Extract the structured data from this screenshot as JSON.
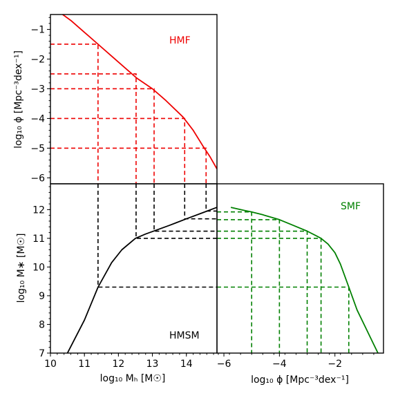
{
  "chart_data": [
    {
      "type": "line",
      "panel": "hmf",
      "label": "HMF",
      "color": "#ee0000",
      "xlim": [
        10,
        14.9
      ],
      "ylim": [
        -6.2,
        -0.5
      ],
      "yticks": [
        "−1",
        "−2",
        "−3",
        "−4",
        "−5",
        "−6"
      ],
      "ytick_values": [
        -1,
        -2,
        -3,
        -4,
        -5,
        -6
      ],
      "ylabel": "log₁₀ ϕ [Mpc⁻³dex⁻¹]",
      "series": [
        {
          "x": [
            10.3,
            10.6,
            11.0,
            11.4,
            11.8,
            12.2,
            12.55,
            13.0,
            13.4,
            13.9,
            14.2,
            14.5,
            14.7,
            14.9
          ],
          "y": [
            -0.45,
            -0.7,
            -1.1,
            -1.5,
            -1.9,
            -2.3,
            -2.65,
            -3.0,
            -3.4,
            -3.95,
            -4.4,
            -4.95,
            -5.3,
            -5.7
          ]
        }
      ],
      "guides": [
        {
          "x": 11.4,
          "y": -1.5
        },
        {
          "x": 12.52,
          "y": -2.5
        },
        {
          "x": 13.05,
          "y": -3.0
        },
        {
          "x": 13.95,
          "y": -4.0
        },
        {
          "x": 14.58,
          "y": -5.0
        }
      ]
    },
    {
      "type": "line",
      "panel": "hmsm",
      "label": "HMSM",
      "color": "#000000",
      "xlim": [
        10,
        14.9
      ],
      "ylim": [
        7,
        12.9
      ],
      "xticks": [
        "10",
        "11",
        "12",
        "13",
        "14"
      ],
      "xtick_values": [
        10,
        11,
        12,
        13,
        14
      ],
      "yticks": [
        "7",
        "8",
        "9",
        "10",
        "11",
        "12"
      ],
      "ytick_values": [
        7,
        8,
        9,
        10,
        11,
        12
      ],
      "xlabel": "log₁₀ Mₕ [M☉]",
      "ylabel": "log₁₀ M∗ [M☉]",
      "series": [
        {
          "x": [
            10.5,
            11.0,
            11.4,
            11.8,
            12.1,
            12.5,
            12.8,
            13.1,
            13.5,
            14.0,
            14.5,
            14.9
          ],
          "y": [
            7.0,
            8.15,
            9.3,
            10.15,
            10.6,
            11.0,
            11.15,
            11.28,
            11.45,
            11.68,
            11.9,
            12.08
          ]
        }
      ],
      "guides": [
        {
          "x": 11.4,
          "y": 9.3
        },
        {
          "x": 12.52,
          "y": 11.0
        },
        {
          "x": 13.05,
          "y": 11.25
        },
        {
          "x": 13.95,
          "y": 11.68
        },
        {
          "x": 14.58,
          "y": 11.95
        }
      ]
    },
    {
      "type": "line",
      "panel": "smf",
      "label": "SMF",
      "color": "#008000",
      "xlim": [
        -6.25,
        -0.25
      ],
      "ylim": [
        7,
        12.9
      ],
      "xticks": [
        "−6",
        "−4",
        "−2"
      ],
      "xtick_values": [
        -6,
        -4,
        -2
      ],
      "xlabel": "log₁₀ ϕ [Mpc⁻³dex⁻¹]",
      "series": [
        {
          "x": [
            -5.75,
            -5.3,
            -5.0,
            -4.6,
            -4.0,
            -3.5,
            -3.0,
            -2.7,
            -2.5,
            -2.25,
            -2.0,
            -1.8,
            -1.5,
            -1.2,
            -0.9,
            -0.6,
            -0.45
          ],
          "y": [
            12.08,
            11.98,
            11.92,
            11.82,
            11.65,
            11.45,
            11.25,
            11.1,
            11.0,
            10.8,
            10.5,
            10.1,
            9.3,
            8.5,
            7.9,
            7.3,
            7.0
          ]
        }
      ],
      "guides": [
        {
          "x": -5.0,
          "y": 11.92
        },
        {
          "x": -4.0,
          "y": 11.65
        },
        {
          "x": -3.0,
          "y": 11.25
        },
        {
          "x": -2.5,
          "y": 11.0
        },
        {
          "x": -1.5,
          "y": 9.3
        }
      ]
    }
  ]
}
